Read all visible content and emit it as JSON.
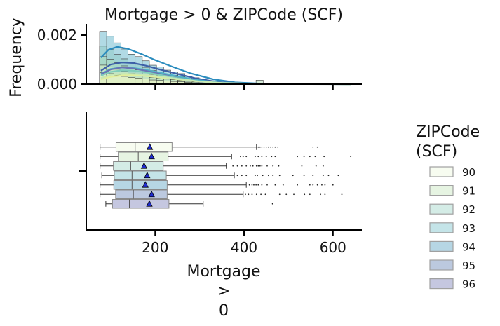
{
  "chart_data": {
    "type": "histogram+boxplot",
    "title": "Mortgage > 0 & ZIPCode (SCF)",
    "top_panel": {
      "ylabel": "Frequency",
      "yticks": [
        "0.000",
        "0.002"
      ],
      "ylim": [
        0,
        0.0024
      ],
      "xlim": [
        45,
        665
      ],
      "bin_edges": [
        75,
        91,
        107,
        123,
        139,
        155,
        171,
        187,
        203,
        219,
        235,
        251,
        267,
        283,
        299,
        315,
        331,
        347
      ],
      "hist_totals": [
        0.00215,
        0.00195,
        0.00168,
        0.00143,
        0.00122,
        0.00112,
        0.00095,
        0.00077,
        0.0007,
        0.00057,
        0.0005,
        0.00043,
        0.00032,
        0.00026,
        0.0002,
        0.00013,
        8e-05
      ],
      "hist_outlier_bin": {
        "x0": 427,
        "x1": 443,
        "value": 0.00016
      },
      "kde_series": [
        {
          "name": "94",
          "color": "#2b8cbe",
          "points": [
            [
              78,
              0.00108
            ],
            [
              95,
              0.0014
            ],
            [
              115,
              0.00152
            ],
            [
              140,
              0.00143
            ],
            [
              170,
              0.00122
            ],
            [
              200,
              0.00098
            ],
            [
              240,
              0.0007
            ],
            [
              280,
              0.00044
            ],
            [
              330,
              0.0002
            ],
            [
              380,
              7e-05
            ],
            [
              430,
              3e-05
            ],
            [
              500,
              1e-05
            ],
            [
              640,
              0.0
            ]
          ]
        },
        {
          "name": "95",
          "color": "#3d5fa8",
          "points": [
            [
              78,
              0.00055
            ],
            [
              100,
              0.0008
            ],
            [
              125,
              0.00088
            ],
            [
              150,
              0.00086
            ],
            [
              180,
              0.00075
            ],
            [
              210,
              0.0006
            ],
            [
              250,
              0.00042
            ],
            [
              290,
              0.00024
            ],
            [
              340,
              9e-05
            ],
            [
              400,
              3e-05
            ],
            [
              470,
              1e-05
            ],
            [
              640,
              0.0
            ]
          ]
        },
        {
          "name": "93",
          "color": "#4fb3c8",
          "points": [
            [
              78,
              0.00042
            ],
            [
              100,
              0.00062
            ],
            [
              125,
              0.00068
            ],
            [
              150,
              0.00066
            ],
            [
              180,
              0.00058
            ],
            [
              210,
              0.00047
            ],
            [
              250,
              0.00032
            ],
            [
              290,
              0.00018
            ],
            [
              340,
              7e-05
            ],
            [
              410,
              2e-05
            ],
            [
              640,
              0.0
            ]
          ]
        },
        {
          "name": "96",
          "color": "#6a74b5",
          "points": [
            [
              78,
              0.0004
            ],
            [
              100,
              0.0006
            ],
            [
              125,
              0.00068
            ],
            [
              150,
              0.00064
            ],
            [
              180,
              0.00054
            ],
            [
              210,
              0.00042
            ],
            [
              250,
              0.00026
            ],
            [
              290,
              0.00012
            ],
            [
              330,
              4e-05
            ],
            [
              380,
              1e-05
            ],
            [
              640,
              0.0
            ]
          ]
        },
        {
          "name": "92",
          "color": "#7fcdbb",
          "points": [
            [
              78,
              0.00035
            ],
            [
              100,
              0.0005
            ],
            [
              125,
              0.00056
            ],
            [
              150,
              0.00055
            ],
            [
              180,
              0.00048
            ],
            [
              210,
              0.00038
            ],
            [
              250,
              0.00025
            ],
            [
              300,
              0.00011
            ],
            [
              360,
              3e-05
            ],
            [
              640,
              0.0
            ]
          ]
        },
        {
          "name": "90",
          "color": "#e2ef9a",
          "points": [
            [
              78,
              0.0002
            ],
            [
              100,
              0.0003
            ],
            [
              130,
              0.00036
            ],
            [
              160,
              0.00036
            ],
            [
              200,
              0.0003
            ],
            [
              240,
              0.00022
            ],
            [
              290,
              0.00012
            ],
            [
              350,
              5e-05
            ],
            [
              420,
              2e-05
            ],
            [
              500,
              1e-05
            ],
            [
              640,
              0.0
            ]
          ]
        },
        {
          "name": "91",
          "color": "#c7e9b4",
          "points": [
            [
              78,
              0.00025
            ],
            [
              100,
              0.00038
            ],
            [
              130,
              0.00043
            ],
            [
              160,
              0.00041
            ],
            [
              200,
              0.00034
            ],
            [
              240,
              0.00024
            ],
            [
              290,
              0.00013
            ],
            [
              350,
              4e-05
            ],
            [
              420,
              1e-05
            ],
            [
              640,
              0.0
            ]
          ]
        }
      ]
    },
    "bottom_panel": {
      "xlabel": "Mortgage\n>\n0",
      "xticks": [
        200,
        400,
        600
      ],
      "xlim": [
        45,
        665
      ],
      "boxes": [
        {
          "name": "90",
          "color": "#f7fcf0",
          "whislo": 76,
          "q1": 112,
          "med": 155,
          "q3": 238,
          "whishi": 428,
          "mean": 188,
          "fliers": [
            432,
            436,
            440,
            445,
            450,
            455,
            460,
            465,
            470,
            476,
            555,
            565
          ]
        },
        {
          "name": "91",
          "color": "#e6f4e2",
          "whislo": 76,
          "q1": 117,
          "med": 162,
          "q3": 229,
          "whishi": 372,
          "mean": 192,
          "fliers": [
            392,
            398,
            405,
            425,
            432,
            440,
            450,
            462,
            470,
            520,
            535,
            548,
            560,
            580,
            640
          ]
        },
        {
          "name": "92",
          "color": "#d4ece6",
          "whislo": 76,
          "q1": 106,
          "med": 145,
          "q3": 218,
          "whishi": 360,
          "mean": 175,
          "fliers": [
            375,
            385,
            395,
            405,
            414,
            420,
            428,
            432,
            436,
            440,
            452,
            465,
            478,
            530,
            562,
            578
          ]
        },
        {
          "name": "93",
          "color": "#c4e4e8",
          "whislo": 80,
          "q1": 108,
          "med": 148,
          "q3": 225,
          "whishi": 378,
          "mean": 182,
          "fliers": [
            385,
            395,
            405,
            425,
            430,
            442,
            455,
            465,
            480,
            510,
            535,
            555,
            578,
            590,
            612
          ]
        },
        {
          "name": "94",
          "color": "#b6d6e4",
          "whislo": 76,
          "q1": 107,
          "med": 148,
          "q3": 227,
          "whishi": 405,
          "mean": 178,
          "fliers": [
            412,
            418,
            422,
            427,
            432,
            440,
            452,
            470,
            488,
            520,
            548,
            555,
            565,
            575,
            582,
            600
          ]
        },
        {
          "name": "95",
          "color": "#bcc9df",
          "whislo": 76,
          "q1": 111,
          "med": 151,
          "q3": 227,
          "whishi": 398,
          "mean": 192,
          "fliers": [
            403,
            410,
            418,
            428,
            438,
            448,
            480,
            495,
            512,
            536,
            548,
            572,
            582,
            620
          ]
        },
        {
          "name": "96",
          "color": "#c5c7e0",
          "whislo": 89,
          "q1": 104,
          "med": 142,
          "q3": 231,
          "whishi": 308,
          "mean": 187,
          "fliers": [
            464
          ]
        }
      ]
    },
    "legend": {
      "title": "ZIPCode\n(SCF)",
      "placement": "right",
      "entries": [
        {
          "label": "90",
          "color": "#f7fcf0"
        },
        {
          "label": "91",
          "color": "#e6f4e2"
        },
        {
          "label": "92",
          "color": "#d4ece6"
        },
        {
          "label": "93",
          "color": "#c4e4e8"
        },
        {
          "label": "94",
          "color": "#b6d6e4"
        },
        {
          "label": "95",
          "color": "#bcc9df"
        },
        {
          "label": "96",
          "color": "#c5c7e0"
        }
      ]
    }
  }
}
